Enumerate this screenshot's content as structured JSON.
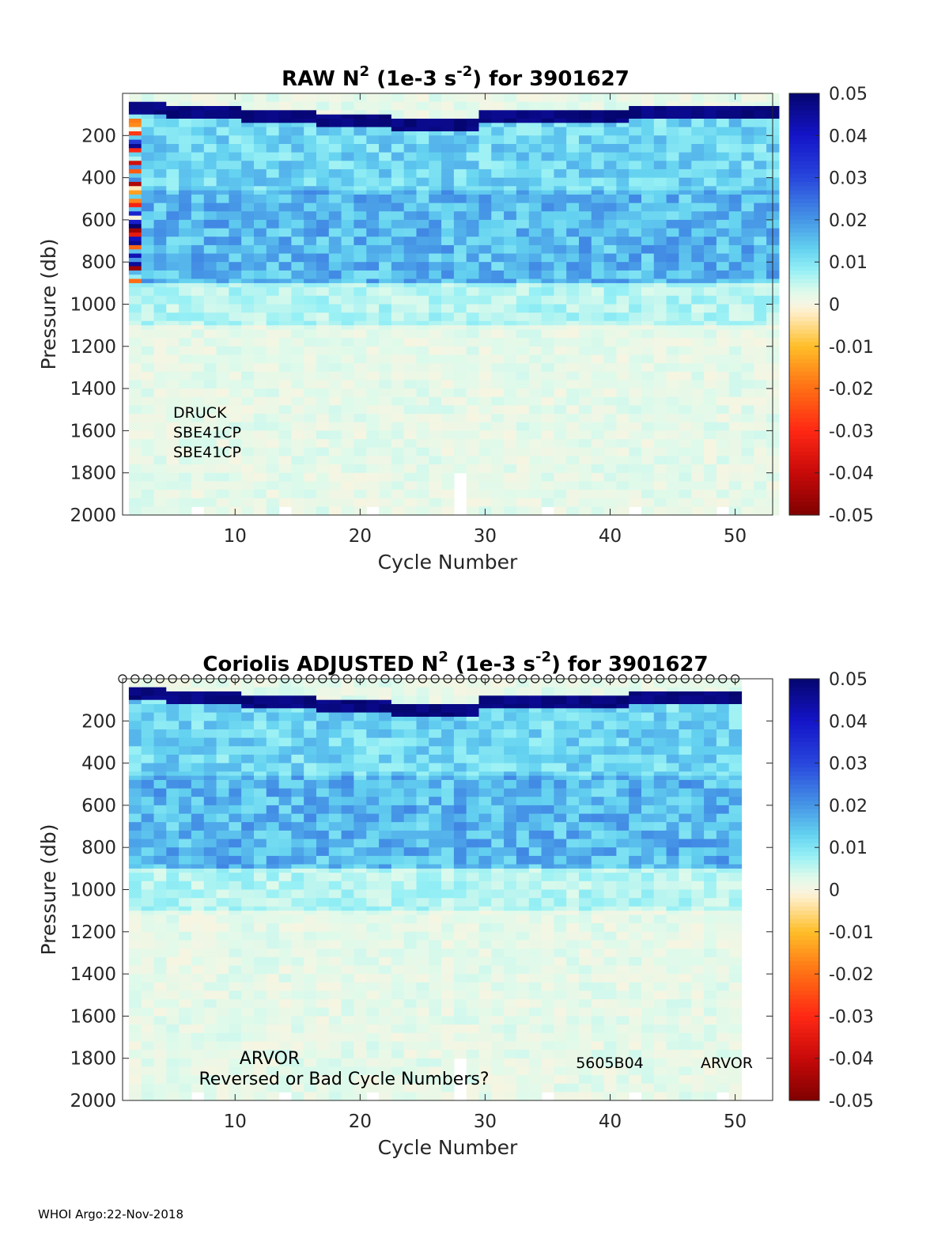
{
  "chart_data": [
    {
      "type": "heatmap",
      "title_prefix": "RAW N",
      "title_sup": "2",
      "title_mid": " (1e-3 s",
      "title_sup2": "-2",
      "title_suffix": ") for 3901627",
      "xlabel": "Cycle Number",
      "ylabel": "Pressure (db)",
      "xlim": [
        1,
        53
      ],
      "ylim": [
        2000,
        0
      ],
      "xticks": [
        10,
        20,
        30,
        40,
        50
      ],
      "yticks": [
        200,
        400,
        600,
        800,
        1000,
        1200,
        1400,
        1600,
        1800,
        2000
      ],
      "colorbar": {
        "min": -0.05,
        "max": 0.05,
        "ticks": [
          "0.05",
          "0.04",
          "0.03",
          "0.02",
          "0.01",
          "0",
          "-0.01",
          "-0.02",
          "-0.03",
          "-0.04",
          "-0.05"
        ]
      },
      "annotations": [
        "DRUCK",
        "SBE41CP",
        "SBE41CP"
      ],
      "cycles": {
        "first": 2,
        "last": 53
      },
      "surface_band": "strong positive (~0.05) in top 50-150 db, deepening toward cycles 20-30",
      "thermocline_band": "~0.02 between 500-900 db",
      "deep": "~0.003 below 1000 db"
    },
    {
      "type": "heatmap",
      "title_prefix": "Coriolis  ADJUSTED N",
      "title_sup": "2",
      "title_mid": " (1e-3 s",
      "title_sup2": "-2",
      "title_suffix": ") for 3901627",
      "xlabel": "Cycle Number",
      "ylabel": "Pressure (db)",
      "xlim": [
        1,
        53
      ],
      "ylim": [
        2000,
        0
      ],
      "xticks": [
        10,
        20,
        30,
        40,
        50
      ],
      "yticks": [
        200,
        400,
        600,
        800,
        1000,
        1200,
        1400,
        1600,
        1800,
        2000
      ],
      "colorbar": {
        "min": -0.05,
        "max": 0.05,
        "ticks": [
          "0.05",
          "0.04",
          "0.03",
          "0.02",
          "0.01",
          "0",
          "-0.01",
          "-0.02",
          "-0.03",
          "-0.04",
          "-0.05"
        ]
      },
      "annotations": [
        "ARVOR",
        "Reversed or Bad Cycle Numbers?",
        "5605B04",
        "ARVOR"
      ],
      "cycles": {
        "first": 2,
        "last": 50
      },
      "marker": "o",
      "surface_band": "strong positive (~0.05) in top 50-150 db",
      "thermocline_band": "~0.02 between 500-900 db",
      "deep": "~0.003 below 1000 db"
    }
  ],
  "footer": "WHOI Argo:22-Nov-2018"
}
